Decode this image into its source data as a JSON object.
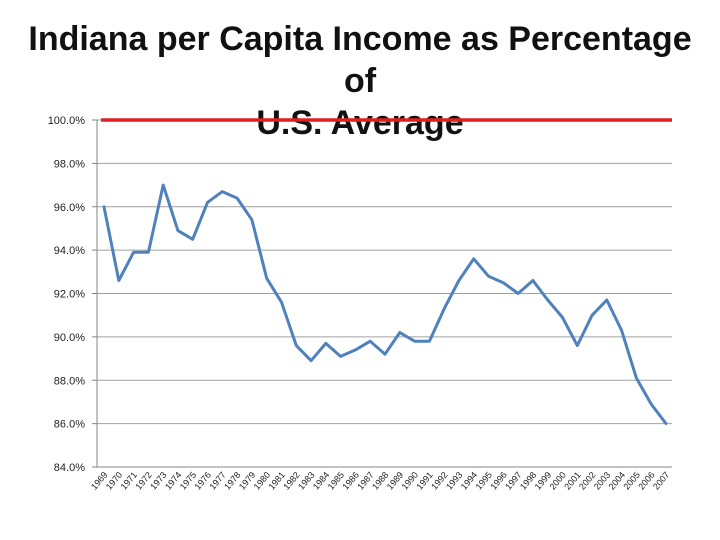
{
  "chart_data": {
    "type": "line",
    "title_line1": "Indiana per Capita Income as Percentage of",
    "title_line2": "U.S. Average",
    "ylim": [
      84.0,
      100.0
    ],
    "y_ticks": [
      "84.0%",
      "86.0%",
      "88.0%",
      "90.0%",
      "92.0%",
      "94.0%",
      "96.0%",
      "98.0%",
      "100.0%"
    ],
    "y_tick_values": [
      84,
      86,
      88,
      90,
      92,
      94,
      96,
      98,
      100
    ],
    "grid": true,
    "categories": [
      "1969",
      "1970",
      "1971",
      "1972",
      "1973",
      "1974",
      "1975",
      "1976",
      "1977",
      "1978",
      "1979",
      "1980",
      "1981",
      "1982",
      "1983",
      "1984",
      "1985",
      "1986",
      "1987",
      "1988",
      "1989",
      "1990",
      "1991",
      "1992",
      "1993",
      "1994",
      "1995",
      "1996",
      "1997",
      "1998",
      "1999",
      "2000",
      "2001",
      "2002",
      "2003",
      "2004",
      "2005",
      "2006",
      "2007"
    ],
    "series": [
      {
        "color": "#4f81bd",
        "values": [
          96.0,
          92.6,
          93.9,
          93.9,
          97.0,
          94.9,
          94.5,
          96.2,
          96.7,
          96.4,
          95.4,
          92.7,
          91.6,
          89.6,
          88.9,
          89.7,
          89.1,
          89.4,
          89.8,
          89.2,
          90.2,
          89.8,
          89.8,
          91.3,
          92.6,
          93.6,
          92.8,
          92.5,
          92.0,
          92.6,
          91.7,
          90.9,
          89.6,
          91.0,
          91.7,
          90.3,
          88.1,
          86.9,
          86.0
        ]
      }
    ],
    "reference_line": {
      "value": 100.0,
      "color": "#e02020"
    },
    "gridline_color": "#a0a0a0",
    "axis_color": "#868686"
  }
}
